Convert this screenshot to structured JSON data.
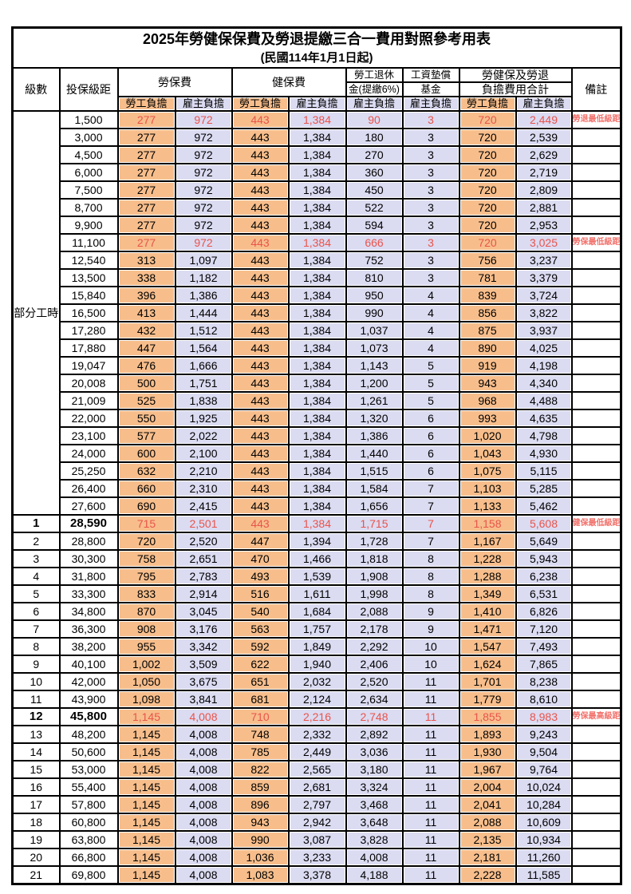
{
  "title": "2025年勞健保保費及勞退提繳三合一費用對照參考用表",
  "subtitle": "(民國114年1月1日起)",
  "header": {
    "level": "級數",
    "salary": "投保級距",
    "labor_ins": "勞保費",
    "health_ins": "健保費",
    "pension_line1": "勞工退休",
    "pension_line2": "金(提繳6%)",
    "wage_fund_line1": "工資墊償",
    "wage_fund_line2": "基金",
    "total_line1": "勞健保及勞退",
    "total_line2": "負擔費用合計",
    "remark": "備註",
    "employee": "勞工負擔",
    "employer": "雇主負擔"
  },
  "part_time": {
    "label": "部分工時",
    "row_count": 23
  },
  "colors": {
    "employee_bg": "#F7BE8C",
    "employer_bg": "#DBDBF2",
    "highlight_red": "#E9544B",
    "remark_red": "#F2716B"
  },
  "remarks": {
    "pension_min": "勞退最低級距",
    "labor_min": "勞保最低級距",
    "health_min": "健保最低級距",
    "labor_max": "勞保最高級距"
  },
  "rows": [
    {
      "level": null,
      "salary": "1,500",
      "v": [
        "277",
        "972",
        "443",
        "1,384",
        "90",
        "3",
        "720",
        "2,449"
      ],
      "remark": "勞退最低級距",
      "red": true,
      "bold": false
    },
    {
      "level": null,
      "salary": "3,000",
      "v": [
        "277",
        "972",
        "443",
        "1,384",
        "180",
        "3",
        "720",
        "2,539"
      ],
      "remark": "",
      "red": false,
      "bold": false
    },
    {
      "level": null,
      "salary": "4,500",
      "v": [
        "277",
        "972",
        "443",
        "1,384",
        "270",
        "3",
        "720",
        "2,629"
      ],
      "remark": "",
      "red": false,
      "bold": false
    },
    {
      "level": null,
      "salary": "6,000",
      "v": [
        "277",
        "972",
        "443",
        "1,384",
        "360",
        "3",
        "720",
        "2,719"
      ],
      "remark": "",
      "red": false,
      "bold": false
    },
    {
      "level": null,
      "salary": "7,500",
      "v": [
        "277",
        "972",
        "443",
        "1,384",
        "450",
        "3",
        "720",
        "2,809"
      ],
      "remark": "",
      "red": false,
      "bold": false
    },
    {
      "level": null,
      "salary": "8,700",
      "v": [
        "277",
        "972",
        "443",
        "1,384",
        "522",
        "3",
        "720",
        "2,881"
      ],
      "remark": "",
      "red": false,
      "bold": false
    },
    {
      "level": null,
      "salary": "9,900",
      "v": [
        "277",
        "972",
        "443",
        "1,384",
        "594",
        "3",
        "720",
        "2,953"
      ],
      "remark": "",
      "red": false,
      "bold": false
    },
    {
      "level": null,
      "salary": "11,100",
      "v": [
        "277",
        "972",
        "443",
        "1,384",
        "666",
        "3",
        "720",
        "3,025"
      ],
      "remark": "勞保最低級距",
      "red": true,
      "bold": false
    },
    {
      "level": null,
      "salary": "12,540",
      "v": [
        "313",
        "1,097",
        "443",
        "1,384",
        "752",
        "3",
        "756",
        "3,237"
      ],
      "remark": "",
      "red": false,
      "bold": false
    },
    {
      "level": null,
      "salary": "13,500",
      "v": [
        "338",
        "1,182",
        "443",
        "1,384",
        "810",
        "3",
        "781",
        "3,379"
      ],
      "remark": "",
      "red": false,
      "bold": false
    },
    {
      "level": null,
      "salary": "15,840",
      "v": [
        "396",
        "1,386",
        "443",
        "1,384",
        "950",
        "4",
        "839",
        "3,724"
      ],
      "remark": "",
      "red": false,
      "bold": false
    },
    {
      "level": null,
      "salary": "16,500",
      "v": [
        "413",
        "1,444",
        "443",
        "1,384",
        "990",
        "4",
        "856",
        "3,822"
      ],
      "remark": "",
      "red": false,
      "bold": false
    },
    {
      "level": null,
      "salary": "17,280",
      "v": [
        "432",
        "1,512",
        "443",
        "1,384",
        "1,037",
        "4",
        "875",
        "3,937"
      ],
      "remark": "",
      "red": false,
      "bold": false
    },
    {
      "level": null,
      "salary": "17,880",
      "v": [
        "447",
        "1,564",
        "443",
        "1,384",
        "1,073",
        "4",
        "890",
        "4,025"
      ],
      "remark": "",
      "red": false,
      "bold": false
    },
    {
      "level": null,
      "salary": "19,047",
      "v": [
        "476",
        "1,666",
        "443",
        "1,384",
        "1,143",
        "5",
        "919",
        "4,198"
      ],
      "remark": "",
      "red": false,
      "bold": false
    },
    {
      "level": null,
      "salary": "20,008",
      "v": [
        "500",
        "1,751",
        "443",
        "1,384",
        "1,200",
        "5",
        "943",
        "4,340"
      ],
      "remark": "",
      "red": false,
      "bold": false
    },
    {
      "level": null,
      "salary": "21,009",
      "v": [
        "525",
        "1,838",
        "443",
        "1,384",
        "1,261",
        "5",
        "968",
        "4,488"
      ],
      "remark": "",
      "red": false,
      "bold": false
    },
    {
      "level": null,
      "salary": "22,000",
      "v": [
        "550",
        "1,925",
        "443",
        "1,384",
        "1,320",
        "6",
        "993",
        "4,635"
      ],
      "remark": "",
      "red": false,
      "bold": false
    },
    {
      "level": null,
      "salary": "23,100",
      "v": [
        "577",
        "2,022",
        "443",
        "1,384",
        "1,386",
        "6",
        "1,020",
        "4,798"
      ],
      "remark": "",
      "red": false,
      "bold": false
    },
    {
      "level": null,
      "salary": "24,000",
      "v": [
        "600",
        "2,100",
        "443",
        "1,384",
        "1,440",
        "6",
        "1,043",
        "4,930"
      ],
      "remark": "",
      "red": false,
      "bold": false
    },
    {
      "level": null,
      "salary": "25,250",
      "v": [
        "632",
        "2,210",
        "443",
        "1,384",
        "1,515",
        "6",
        "1,075",
        "5,115"
      ],
      "remark": "",
      "red": false,
      "bold": false
    },
    {
      "level": null,
      "salary": "26,400",
      "v": [
        "660",
        "2,310",
        "443",
        "1,384",
        "1,584",
        "7",
        "1,103",
        "5,285"
      ],
      "remark": "",
      "red": false,
      "bold": false
    },
    {
      "level": null,
      "salary": "27,600",
      "v": [
        "690",
        "2,415",
        "443",
        "1,384",
        "1,656",
        "7",
        "1,133",
        "5,462"
      ],
      "remark": "",
      "red": false,
      "bold": false
    },
    {
      "level": "1",
      "salary": "28,590",
      "v": [
        "715",
        "2,501",
        "443",
        "1,384",
        "1,715",
        "7",
        "1,158",
        "5,608"
      ],
      "remark": "健保最低級距",
      "red": true,
      "bold": true
    },
    {
      "level": "2",
      "salary": "28,800",
      "v": [
        "720",
        "2,520",
        "447",
        "1,394",
        "1,728",
        "7",
        "1,167",
        "5,649"
      ],
      "remark": "",
      "red": false,
      "bold": false
    },
    {
      "level": "3",
      "salary": "30,300",
      "v": [
        "758",
        "2,651",
        "470",
        "1,466",
        "1,818",
        "8",
        "1,228",
        "5,943"
      ],
      "remark": "",
      "red": false,
      "bold": false
    },
    {
      "level": "4",
      "salary": "31,800",
      "v": [
        "795",
        "2,783",
        "493",
        "1,539",
        "1,908",
        "8",
        "1,288",
        "6,238"
      ],
      "remark": "",
      "red": false,
      "bold": false
    },
    {
      "level": "5",
      "salary": "33,300",
      "v": [
        "833",
        "2,914",
        "516",
        "1,611",
        "1,998",
        "8",
        "1,349",
        "6,531"
      ],
      "remark": "",
      "red": false,
      "bold": false
    },
    {
      "level": "6",
      "salary": "34,800",
      "v": [
        "870",
        "3,045",
        "540",
        "1,684",
        "2,088",
        "9",
        "1,410",
        "6,826"
      ],
      "remark": "",
      "red": false,
      "bold": false
    },
    {
      "level": "7",
      "salary": "36,300",
      "v": [
        "908",
        "3,176",
        "563",
        "1,757",
        "2,178",
        "9",
        "1,471",
        "7,120"
      ],
      "remark": "",
      "red": false,
      "bold": false
    },
    {
      "level": "8",
      "salary": "38,200",
      "v": [
        "955",
        "3,342",
        "592",
        "1,849",
        "2,292",
        "10",
        "1,547",
        "7,493"
      ],
      "remark": "",
      "red": false,
      "bold": false
    },
    {
      "level": "9",
      "salary": "40,100",
      "v": [
        "1,002",
        "3,509",
        "622",
        "1,940",
        "2,406",
        "10",
        "1,624",
        "7,865"
      ],
      "remark": "",
      "red": false,
      "bold": false
    },
    {
      "level": "10",
      "salary": "42,000",
      "v": [
        "1,050",
        "3,675",
        "651",
        "2,032",
        "2,520",
        "11",
        "1,701",
        "8,238"
      ],
      "remark": "",
      "red": false,
      "bold": false
    },
    {
      "level": "11",
      "salary": "43,900",
      "v": [
        "1,098",
        "3,841",
        "681",
        "2,124",
        "2,634",
        "11",
        "1,779",
        "8,610"
      ],
      "remark": "",
      "red": false,
      "bold": false
    },
    {
      "level": "12",
      "salary": "45,800",
      "v": [
        "1,145",
        "4,008",
        "710",
        "2,216",
        "2,748",
        "11",
        "1,855",
        "8,983"
      ],
      "remark": "勞保最高級距",
      "red": true,
      "bold": true
    },
    {
      "level": "13",
      "salary": "48,200",
      "v": [
        "1,145",
        "4,008",
        "748",
        "2,332",
        "2,892",
        "11",
        "1,893",
        "9,243"
      ],
      "remark": "",
      "red": false,
      "bold": false
    },
    {
      "level": "14",
      "salary": "50,600",
      "v": [
        "1,145",
        "4,008",
        "785",
        "2,449",
        "3,036",
        "11",
        "1,930",
        "9,504"
      ],
      "remark": "",
      "red": false,
      "bold": false
    },
    {
      "level": "15",
      "salary": "53,000",
      "v": [
        "1,145",
        "4,008",
        "822",
        "2,565",
        "3,180",
        "11",
        "1,967",
        "9,764"
      ],
      "remark": "",
      "red": false,
      "bold": false
    },
    {
      "level": "16",
      "salary": "55,400",
      "v": [
        "1,145",
        "4,008",
        "859",
        "2,681",
        "3,324",
        "11",
        "2,004",
        "10,024"
      ],
      "remark": "",
      "red": false,
      "bold": false
    },
    {
      "level": "17",
      "salary": "57,800",
      "v": [
        "1,145",
        "4,008",
        "896",
        "2,797",
        "3,468",
        "11",
        "2,041",
        "10,284"
      ],
      "remark": "",
      "red": false,
      "bold": false
    },
    {
      "level": "18",
      "salary": "60,800",
      "v": [
        "1,145",
        "4,008",
        "943",
        "2,942",
        "3,648",
        "11",
        "2,088",
        "10,609"
      ],
      "remark": "",
      "red": false,
      "bold": false
    },
    {
      "level": "19",
      "salary": "63,800",
      "v": [
        "1,145",
        "4,008",
        "990",
        "3,087",
        "3,828",
        "11",
        "2,135",
        "10,934"
      ],
      "remark": "",
      "red": false,
      "bold": false
    },
    {
      "level": "20",
      "salary": "66,800",
      "v": [
        "1,145",
        "4,008",
        "1,036",
        "3,233",
        "4,008",
        "11",
        "2,181",
        "11,260"
      ],
      "remark": "",
      "red": false,
      "bold": false
    },
    {
      "level": "21",
      "salary": "69,800",
      "v": [
        "1,145",
        "4,008",
        "1,083",
        "3,378",
        "4,188",
        "11",
        "2,228",
        "11,585"
      ],
      "remark": "",
      "red": false,
      "bold": false
    }
  ]
}
